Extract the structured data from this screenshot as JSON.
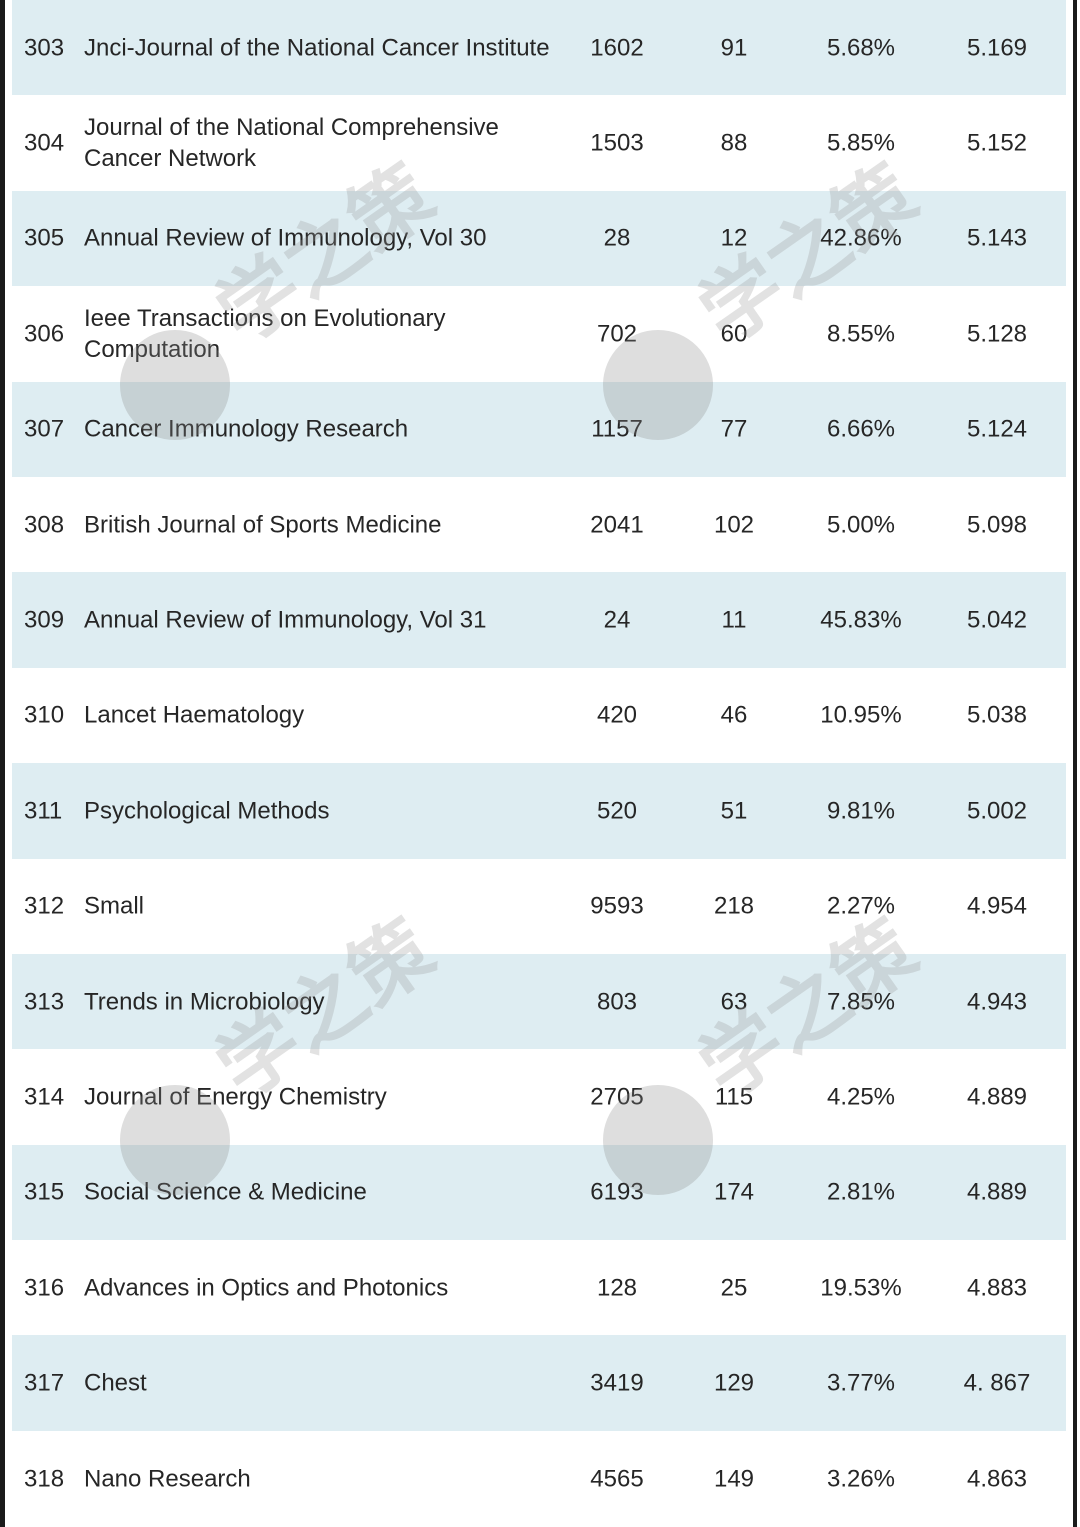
{
  "watermark": "学之策",
  "colors": {
    "row_shade": "#deedf2",
    "text": "#262626",
    "border": "#1a1a1a"
  },
  "rows": [
    {
      "rank": "303",
      "name": "Jnci-Journal of the National Cancer Institute",
      "c1": "1602",
      "c2": "91",
      "c3": "5.68%",
      "c4": "5.169"
    },
    {
      "rank": "304",
      "name": "Journal of the National Comprehensive Cancer Network",
      "c1": "1503",
      "c2": "88",
      "c3": "5.85%",
      "c4": "5.152"
    },
    {
      "rank": "305",
      "name": "Annual Review of Immunology, Vol 30",
      "c1": "28",
      "c2": "12",
      "c3": "42.86%",
      "c4": "5.143"
    },
    {
      "rank": "306",
      "name": "Ieee Transactions on Evolutionary Computation",
      "c1": "702",
      "c2": "60",
      "c3": "8.55%",
      "c4": "5.128"
    },
    {
      "rank": "307",
      "name": "Cancer Immunology Research",
      "c1": "1157",
      "c2": "77",
      "c3": "6.66%",
      "c4": "5.124"
    },
    {
      "rank": "308",
      "name": "British Journal of Sports Medicine",
      "c1": "2041",
      "c2": "102",
      "c3": "5.00%",
      "c4": "5.098"
    },
    {
      "rank": "309",
      "name": "Annual Review of Immunology, Vol 31",
      "c1": "24",
      "c2": "11",
      "c3": "45.83%",
      "c4": "5.042"
    },
    {
      "rank": "310",
      "name": "Lancet Haematology",
      "c1": "420",
      "c2": "46",
      "c3": "10.95%",
      "c4": "5.038"
    },
    {
      "rank": "311",
      "name": "Psychological Methods",
      "c1": "520",
      "c2": "51",
      "c3": "9.81%",
      "c4": "5.002"
    },
    {
      "rank": "312",
      "name": "Small",
      "c1": "9593",
      "c2": "218",
      "c3": "2.27%",
      "c4": "4.954"
    },
    {
      "rank": "313",
      "name": "Trends in Microbiology",
      "c1": "803",
      "c2": "63",
      "c3": "7.85%",
      "c4": "4.943"
    },
    {
      "rank": "314",
      "name": "Journal of Energy Chemistry",
      "c1": "2705",
      "c2": "115",
      "c3": "4.25%",
      "c4": "4.889"
    },
    {
      "rank": "315",
      "name": "Social Science & Medicine",
      "c1": "6193",
      "c2": "174",
      "c3": "2.81%",
      "c4": "4.889"
    },
    {
      "rank": "316",
      "name": "Advances in Optics and Photonics",
      "c1": "128",
      "c2": "25",
      "c3": "19.53%",
      "c4": "4.883"
    },
    {
      "rank": "317",
      "name": "Chest",
      "c1": "3419",
      "c2": "129",
      "c3": "3.77%",
      "c4": "4. 867"
    },
    {
      "rank": "318",
      "name": "Nano Research",
      "c1": "4565",
      "c2": "149",
      "c3": "3.26%",
      "c4": "4.863"
    }
  ]
}
